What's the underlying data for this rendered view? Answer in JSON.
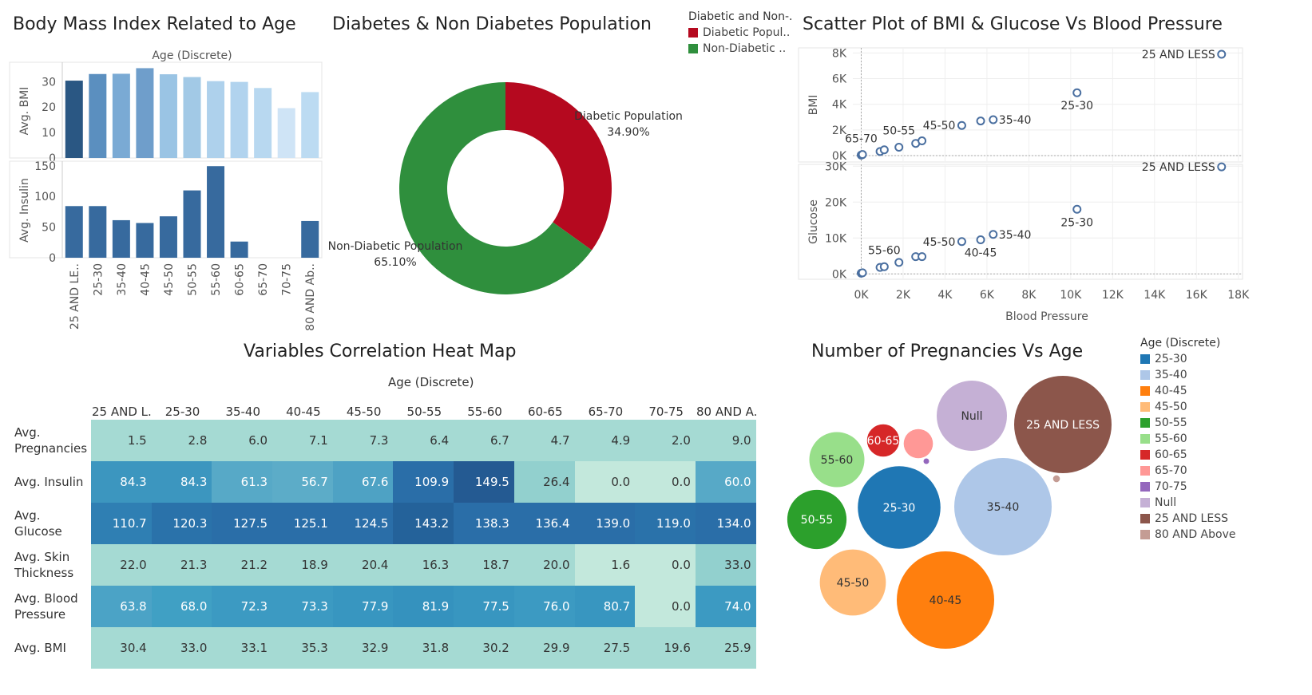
{
  "titles": {
    "bmi_age": "Body Mass Index Related to Age",
    "donut": "Diabetes  & Non Diabetes Population",
    "scatter": "Scatter Plot of BMI & Glucose Vs Blood Pressure",
    "heatmap": "Variables Correlation Heat Map",
    "bubble": "Number of Pregnancies Vs Age"
  },
  "colors": {
    "diabetic": "#b5091f",
    "non_diabetic": "#2f8f3d",
    "scatter_point": "#4a6fa0"
  },
  "donut_legend": {
    "header": "Diabetic and Non-..",
    "items": [
      {
        "label": "Diabetic Popul..",
        "color": "#b5091f"
      },
      {
        "label": "Non-Diabetic ..",
        "color": "#2f8f3d"
      }
    ]
  },
  "bubble_legend": {
    "header": "Age (Discrete)",
    "items": [
      {
        "label": "25-30",
        "color": "#1f77b4"
      },
      {
        "label": "35-40",
        "color": "#aec7e8"
      },
      {
        "label": "40-45",
        "color": "#ff7f0e"
      },
      {
        "label": "45-50",
        "color": "#ffbb78"
      },
      {
        "label": "50-55",
        "color": "#2ca02c"
      },
      {
        "label": "55-60",
        "color": "#98df8a"
      },
      {
        "label": "60-65",
        "color": "#d62728"
      },
      {
        "label": "65-70",
        "color": "#ff9896"
      },
      {
        "label": "70-75",
        "color": "#9467bd"
      },
      {
        "label": "Null",
        "color": "#c5b0d5"
      },
      {
        "label": "25 AND LESS",
        "color": "#8c564b"
      },
      {
        "label": "80 AND Above",
        "color": "#c49c94"
      }
    ]
  },
  "chart_data": [
    {
      "type": "bar",
      "id": "bmi_insulin_by_age",
      "title": "Body Mass Index Related to Age",
      "xlabel": "Age (Discrete)",
      "categories": [
        "25 AND LE..",
        "25-30",
        "35-40",
        "40-45",
        "45-50",
        "50-55",
        "55-60",
        "60-65",
        "65-70",
        "70-75",
        "80 AND Ab.."
      ],
      "series": [
        {
          "name": "Avg. BMI",
          "values": [
            30.4,
            33.0,
            33.1,
            35.3,
            32.9,
            31.8,
            30.2,
            29.9,
            27.5,
            19.6,
            25.9
          ],
          "ylim": [
            0,
            37
          ],
          "ticks": [
            0,
            10,
            20,
            30
          ],
          "colors": [
            "#2a5783",
            "#5b8fbf",
            "#7aaad4",
            "#6f9ecb",
            "#9ac4e4",
            "#a2c9e6",
            "#aed1ec",
            "#b1d3ee",
            "#b8d8f0",
            "#cfe4f6",
            "#bcdbf2"
          ]
        },
        {
          "name": "Avg. Insulin",
          "values": [
            84.3,
            84.3,
            61.3,
            56.7,
            67.6,
            109.9,
            149.5,
            26.4,
            0.0,
            0.0,
            60.0
          ],
          "ylim": [
            0,
            155
          ],
          "ticks": [
            0,
            50,
            100,
            150
          ],
          "color": "#376a9e"
        }
      ]
    },
    {
      "type": "pie",
      "id": "diabetes_donut",
      "title": "Diabetes  & Non Diabetes Population",
      "slices": [
        {
          "label": "Diabetic Population",
          "value": 34.9,
          "value_text": "34.90%",
          "color": "#b5091f"
        },
        {
          "label": "Non-Diabetic Population",
          "value": 65.1,
          "value_text": "65.10%",
          "color": "#2f8f3d"
        }
      ]
    },
    {
      "type": "scatter",
      "id": "bmi_glucose_vs_bp",
      "title": "Scatter Plot of BMI & Glucose Vs Blood Pressure",
      "xlabel": "Blood Pressure",
      "xlim": [
        -400,
        18200
      ],
      "xticks": [
        0,
        2000,
        4000,
        6000,
        8000,
        10000,
        12000,
        14000,
        16000,
        18000
      ],
      "xtick_labels": [
        "0K",
        "2K",
        "4K",
        "6K",
        "8K",
        "10K",
        "12K",
        "14K",
        "16K",
        "18K"
      ],
      "panels": [
        {
          "ylabel": "BMI",
          "ylim": [
            -500,
            8400
          ],
          "yticks": [
            0,
            2000,
            4000,
            6000,
            8000
          ],
          "ytick_labels": [
            "0K",
            "2K",
            "4K",
            "6K",
            "8K"
          ],
          "points": [
            [
              0,
              40
            ],
            [
              60,
              80
            ],
            [
              900,
              320
            ],
            [
              1100,
              450
            ],
            [
              1800,
              650
            ],
            [
              2600,
              950
            ],
            [
              2900,
              1150
            ],
            [
              4800,
              2350
            ],
            [
              5700,
              2700
            ],
            [
              6300,
              2800
            ],
            [
              10300,
              4900
            ],
            [
              17200,
              7900
            ]
          ],
          "labels": [
            {
              "text": "25 AND LESS",
              "x": 17200,
              "y": 7900,
              "pos": "left"
            },
            {
              "text": "25-30",
              "x": 10300,
              "y": 4900,
              "pos": "below"
            },
            {
              "text": "35-40",
              "x": 6300,
              "y": 2800,
              "pos": "right"
            },
            {
              "text": "45-50",
              "x": 4800,
              "y": 2350,
              "pos": "left"
            },
            {
              "text": "50-55",
              "x": 1800,
              "y": 650,
              "pos": "aboveleft"
            },
            {
              "text": "65-70",
              "x": 0,
              "y": 40,
              "pos": "above"
            }
          ]
        },
        {
          "ylabel": "Glucose",
          "ylim": [
            -1500,
            30500
          ],
          "yticks": [
            0,
            10000,
            20000,
            30000
          ],
          "ytick_labels": [
            "0K",
            "10K",
            "20K",
            "30K"
          ],
          "points": [
            [
              0,
              200
            ],
            [
              60,
              300
            ],
            [
              900,
              1800
            ],
            [
              1100,
              2000
            ],
            [
              1800,
              3200
            ],
            [
              2600,
              4800
            ],
            [
              2900,
              4800
            ],
            [
              4800,
              9000
            ],
            [
              5700,
              9500
            ],
            [
              6300,
              11000
            ],
            [
              10300,
              18000
            ],
            [
              17200,
              29800
            ]
          ],
          "labels": [
            {
              "text": "25 AND LESS",
              "x": 17200,
              "y": 29800,
              "pos": "left"
            },
            {
              "text": "25-30",
              "x": 10300,
              "y": 18000,
              "pos": "below"
            },
            {
              "text": "35-40",
              "x": 6300,
              "y": 11000,
              "pos": "right"
            },
            {
              "text": "45-50",
              "x": 4800,
              "y": 9000,
              "pos": "left"
            },
            {
              "text": "40-45",
              "x": 5700,
              "y": 9500,
              "pos": "below"
            },
            {
              "text": "55-60",
              "x": 1100,
              "y": 2000,
              "pos": "above"
            }
          ]
        }
      ]
    },
    {
      "type": "heatmap",
      "id": "correlation_heatmap",
      "title": "Variables Correlation Heat Map",
      "xlabel": "Age (Discrete)",
      "columns": [
        "25 AND L..",
        "25-30",
        "35-40",
        "40-45",
        "45-50",
        "50-55",
        "55-60",
        "60-65",
        "65-70",
        "70-75",
        "80 AND A.."
      ],
      "rows": [
        {
          "label": "Avg. Pregnancies",
          "values": [
            "1.5",
            "2.8",
            "6.0",
            "7.1",
            "7.3",
            "6.4",
            "6.7",
            "4.7",
            "4.9",
            "2.0",
            "9.0"
          ]
        },
        {
          "label": "Avg. Insulin",
          "values": [
            "84.3",
            "84.3",
            "61.3",
            "56.7",
            "67.6",
            "109.9",
            "149.5",
            "26.4",
            "0.0",
            "0.0",
            "60.0"
          ]
        },
        {
          "label": "Avg. Glucose",
          "values": [
            "110.7",
            "120.3",
            "127.5",
            "125.1",
            "124.5",
            "143.2",
            "138.3",
            "136.4",
            "139.0",
            "119.0",
            "134.0"
          ]
        },
        {
          "label": "Avg. Skin Thickness",
          "values": [
            "22.0",
            "21.3",
            "21.2",
            "18.9",
            "20.4",
            "16.3",
            "18.7",
            "20.0",
            "1.6",
            "0.0",
            "33.0"
          ]
        },
        {
          "label": "Avg. Blood Pressure",
          "values": [
            "63.8",
            "68.0",
            "72.3",
            "73.3",
            "77.9",
            "81.9",
            "77.5",
            "76.0",
            "80.7",
            "0.0",
            "74.0"
          ]
        },
        {
          "label": "Avg. BMI",
          "values": [
            "30.4",
            "33.0",
            "33.1",
            "35.3",
            "32.9",
            "31.8",
            "30.2",
            "29.9",
            "27.5",
            "19.6",
            "25.9"
          ]
        }
      ],
      "cell_colors": [
        [
          "#a5dad3",
          "#a5dad3",
          "#a5dad3",
          "#a5dad3",
          "#a5dad3",
          "#a5dad3",
          "#a5dad3",
          "#a5dad3",
          "#a5dad3",
          "#a5dad3",
          "#a5dad3"
        ],
        [
          "#3c96bf",
          "#3c96bf",
          "#57a9c7",
          "#5cacc8",
          "#4ea2c4",
          "#2a6ea8",
          "#245a92",
          "#92d0ce",
          "#c3e8dc",
          "#c3e8dc",
          "#57a9c7"
        ],
        [
          "#2f7fb3",
          "#2a72aa",
          "#2a6ea8",
          "#2a6ea8",
          "#2a6ea8",
          "#24629a",
          "#2a6ea8",
          "#2a6ea8",
          "#2a6ea8",
          "#2a72aa",
          "#2a6ea8"
        ],
        [
          "#a5dad3",
          "#a5dad3",
          "#a5dad3",
          "#a5dad3",
          "#a5dad3",
          "#a5dad3",
          "#a5dad3",
          "#a5dad3",
          "#c3e8dc",
          "#c3e8dc",
          "#92d0ce"
        ],
        [
          "#4ba3c6",
          "#40a0c4",
          "#3c9ac2",
          "#3c9ac2",
          "#3896c0",
          "#3592be",
          "#3896c0",
          "#3c9ac2",
          "#3896c0",
          "#c3e8dc",
          "#3c9ac2"
        ],
        [
          "#a5dad3",
          "#a5dad3",
          "#a5dad3",
          "#a5dad3",
          "#a5dad3",
          "#a5dad3",
          "#a5dad3",
          "#a5dad3",
          "#a5dad3",
          "#a5dad3",
          "#a5dad3"
        ]
      ]
    },
    {
      "type": "bubble",
      "id": "pregnancies_vs_age",
      "title": "Number of Pregnancies Vs Age",
      "bubbles": [
        {
          "label": "25 AND LESS",
          "color": "#8c564b",
          "size": 1.0
        },
        {
          "label": "35-40",
          "color": "#aec7e8",
          "size": 1.0
        },
        {
          "label": "40-45",
          "color": "#ff7f0e",
          "size": 1.0
        },
        {
          "label": "25-30",
          "color": "#1f77b4",
          "size": 0.72
        },
        {
          "label": "Null",
          "color": "#c5b0d5",
          "size": 0.52
        },
        {
          "label": "45-50",
          "color": "#ffbb78",
          "size": 0.46
        },
        {
          "label": "50-55",
          "color": "#2ca02c",
          "size": 0.37
        },
        {
          "label": "55-60",
          "color": "#98df8a",
          "size": 0.32
        },
        {
          "label": "60-65",
          "color": "#d62728",
          "size": 0.11
        },
        {
          "label": "65-70",
          "color": "#ff9896",
          "size": 0.09
        },
        {
          "label": "80 AND Above",
          "color": "#c49c94",
          "size": 0.005
        },
        {
          "label": "70-75",
          "color": "#9467bd",
          "size": 0.002
        }
      ]
    }
  ]
}
